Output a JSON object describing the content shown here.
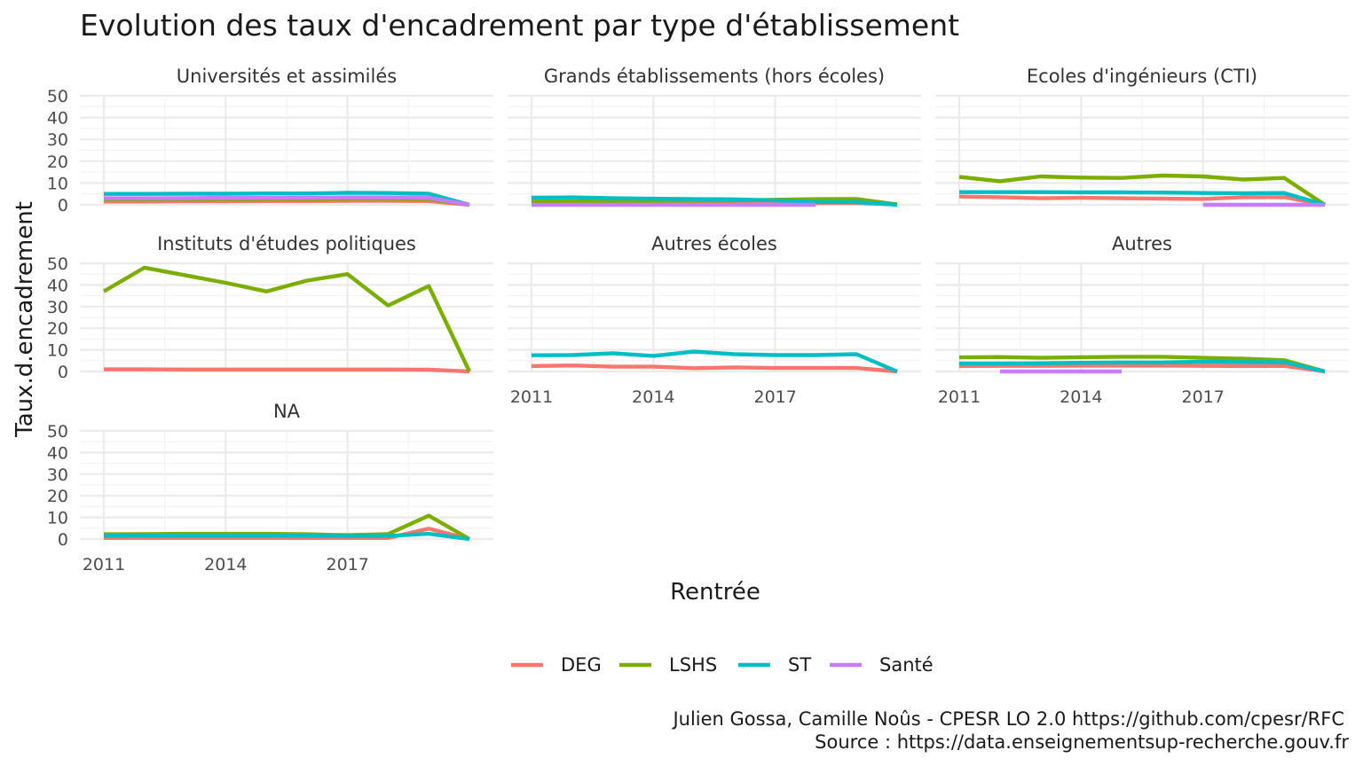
{
  "chart_data": {
    "type": "line",
    "title": "Evolution des taux d'encadrement par type d'établissement",
    "xlabel": "Rentrée",
    "ylabel": "Taux.d.encadrement",
    "x_ticks": [
      "2011",
      "2014",
      "2017"
    ],
    "y_ticks": [
      "0",
      "10",
      "20",
      "30",
      "40",
      "50"
    ],
    "xlim": [
      2011,
      2020
    ],
    "ylim": [
      0,
      50
    ],
    "grid": true,
    "legend_position": "bottom",
    "colors": {
      "DEG": "#F8766D",
      "LSHS": "#7CAE00",
      "ST": "#00BFC4",
      "Santé": "#C77CFF"
    },
    "legend": [
      "DEG",
      "LSHS",
      "ST",
      "Santé"
    ],
    "caption": [
      "Julien Gossa, Camille Noûs - CPESR LO 2.0 https://github.com/cpesr/RFC",
      "Source : https://data.enseignementsup-recherche.gouv.fr"
    ],
    "panels": [
      {
        "name": "Universités et assimilés",
        "series": [
          {
            "name": "DEG",
            "x": [
              2011,
              2012,
              2013,
              2014,
              2015,
              2016,
              2017,
              2018,
              2019,
              2020
            ],
            "y": [
              1.5,
              1.5,
              1.6,
              1.6,
              1.7,
              1.7,
              1.8,
              1.8,
              1.7,
              0
            ]
          },
          {
            "name": "LSHS",
            "x": [
              2011,
              2012,
              2013,
              2014,
              2015,
              2016,
              2017,
              2018,
              2019,
              2020
            ],
            "y": [
              2.5,
              2.5,
              2.6,
              2.6,
              2.7,
              2.7,
              2.8,
              2.8,
              2.7,
              0
            ]
          },
          {
            "name": "ST",
            "x": [
              2011,
              2012,
              2013,
              2014,
              2015,
              2016,
              2017,
              2018,
              2019,
              2020
            ],
            "y": [
              5.0,
              5.0,
              5.1,
              5.1,
              5.2,
              5.2,
              5.5,
              5.4,
              5.1,
              0
            ]
          },
          {
            "name": "Santé",
            "x": [
              2011,
              2012,
              2013,
              2014,
              2015,
              2016,
              2017,
              2018,
              2019,
              2020
            ],
            "y": [
              3.0,
              3.0,
              3.1,
              3.2,
              3.2,
              3.3,
              3.4,
              3.4,
              3.2,
              0
            ]
          }
        ]
      },
      {
        "name": "Grands établissements (hors écoles)",
        "series": [
          {
            "name": "DEG",
            "x": [
              2011,
              2012,
              2013,
              2014,
              2015,
              2016,
              2017,
              2018,
              2019,
              2020
            ],
            "y": [
              0.8,
              0.8,
              0.8,
              0.8,
              0.8,
              0.8,
              0.8,
              0.8,
              0.8,
              0.2
            ]
          },
          {
            "name": "LSHS",
            "x": [
              2011,
              2012,
              2013,
              2014,
              2015,
              2016,
              2017,
              2018,
              2019,
              2020
            ],
            "y": [
              1.5,
              1.6,
              1.7,
              1.8,
              1.9,
              2.0,
              2.3,
              2.6,
              2.7,
              0.2
            ]
          },
          {
            "name": "ST",
            "x": [
              2011,
              2012,
              2013,
              2014,
              2015,
              2016,
              2017,
              2018,
              2019,
              2020
            ],
            "y": [
              3.3,
              3.4,
              3.0,
              2.8,
              2.6,
              2.5,
              2.0,
              1.3,
              1.2,
              0
            ]
          },
          {
            "name": "Santé",
            "x": [
              2011,
              2012,
              2013,
              2014,
              2015,
              2016,
              2017,
              2018
            ],
            "y": [
              0,
              0,
              0,
              0,
              0,
              0,
              0,
              0
            ]
          }
        ]
      },
      {
        "name": "Ecoles d'ingénieurs (CTI)",
        "series": [
          {
            "name": "DEG",
            "x": [
              2011,
              2012,
              2013,
              2014,
              2015,
              2016,
              2017,
              2018,
              2019,
              2020
            ],
            "y": [
              3.8,
              3.5,
              3.0,
              3.2,
              3.0,
              2.8,
              2.7,
              3.5,
              3.5,
              0
            ]
          },
          {
            "name": "LSHS",
            "x": [
              2011,
              2012,
              2013,
              2014,
              2015,
              2016,
              2017,
              2018,
              2019,
              2020
            ],
            "y": [
              12.8,
              10.8,
              13.0,
              12.5,
              12.3,
              13.4,
              13.0,
              11.6,
              12.3,
              0
            ]
          },
          {
            "name": "ST",
            "x": [
              2011,
              2012,
              2013,
              2014,
              2015,
              2016,
              2017,
              2018,
              2019,
              2020
            ],
            "y": [
              5.8,
              5.8,
              5.8,
              5.7,
              5.7,
              5.6,
              5.4,
              5.3,
              5.4,
              0
            ]
          },
          {
            "name": "Santé",
            "x": [
              2017,
              2018,
              2019,
              2020
            ],
            "y": [
              0,
              0,
              0,
              0
            ]
          }
        ]
      },
      {
        "name": "Instituts d'études politiques",
        "series": [
          {
            "name": "DEG",
            "x": [
              2011,
              2012,
              2013,
              2014,
              2015,
              2016,
              2017,
              2018,
              2019,
              2020
            ],
            "y": [
              1.0,
              1.0,
              0.9,
              0.9,
              0.9,
              0.9,
              0.9,
              0.9,
              0.8,
              0
            ]
          },
          {
            "name": "LSHS",
            "x": [
              2011,
              2012,
              2013,
              2014,
              2015,
              2016,
              2017,
              2018,
              2019,
              2020
            ],
            "y": [
              37,
              48,
              44.5,
              41,
              37,
              42,
              45,
              30.5,
              39.5,
              0
            ]
          }
        ]
      },
      {
        "name": "Autres écoles",
        "series": [
          {
            "name": "DEG",
            "x": [
              2011,
              2012,
              2013,
              2014,
              2015,
              2016,
              2017,
              2018,
              2019,
              2020
            ],
            "y": [
              2.5,
              2.8,
              2.2,
              2.2,
              1.5,
              1.9,
              1.6,
              1.6,
              1.6,
              0
            ]
          },
          {
            "name": "ST",
            "x": [
              2011,
              2012,
              2013,
              2014,
              2015,
              2016,
              2017,
              2018,
              2019,
              2020
            ],
            "y": [
              7.5,
              7.6,
              8.4,
              7.2,
              9.2,
              8.0,
              7.6,
              7.6,
              8.0,
              0
            ]
          }
        ]
      },
      {
        "name": "Autres",
        "series": [
          {
            "name": "DEG",
            "x": [
              2011,
              2012,
              2013,
              2014,
              2015,
              2016,
              2017,
              2018,
              2019,
              2020
            ],
            "y": [
              2.5,
              2.6,
              2.6,
              2.7,
              2.7,
              2.7,
              2.6,
              2.5,
              2.6,
              0
            ]
          },
          {
            "name": "LSHS",
            "x": [
              2011,
              2012,
              2013,
              2014,
              2015,
              2016,
              2017,
              2018,
              2019,
              2020
            ],
            "y": [
              6.5,
              6.7,
              6.3,
              6.6,
              6.8,
              6.8,
              6.3,
              5.9,
              5.2,
              0
            ]
          },
          {
            "name": "ST",
            "x": [
              2011,
              2012,
              2013,
              2014,
              2015,
              2016,
              2017,
              2018,
              2019,
              2020
            ],
            "y": [
              3.7,
              3.7,
              3.8,
              4.0,
              4.2,
              4.2,
              4.5,
              4.3,
              4.3,
              0
            ]
          },
          {
            "name": "Santé",
            "x": [
              2012,
              2013,
              2014,
              2015
            ],
            "y": [
              0,
              0,
              0,
              0
            ]
          }
        ]
      },
      {
        "name": "NA",
        "series": [
          {
            "name": "DEG",
            "x": [
              2011,
              2012,
              2013,
              2014,
              2015,
              2016,
              2017,
              2018,
              2019,
              2020
            ],
            "y": [
              0.5,
              0.5,
              0.5,
              0.5,
              0.5,
              0.5,
              0.5,
              0.5,
              4.8,
              0
            ]
          },
          {
            "name": "LSHS",
            "x": [
              2011,
              2012,
              2013,
              2014,
              2015,
              2016,
              2017,
              2018,
              2019,
              2020
            ],
            "y": [
              2.2,
              2.3,
              2.4,
              2.4,
              2.4,
              2.2,
              1.8,
              2.3,
              10.8,
              0
            ]
          },
          {
            "name": "ST",
            "x": [
              2011,
              2012,
              2013,
              2014,
              2015,
              2016,
              2017,
              2018,
              2019,
              2020
            ],
            "y": [
              1.5,
              1.5,
              1.5,
              1.5,
              1.5,
              1.5,
              1.4,
              1.4,
              2.4,
              0
            ]
          }
        ]
      }
    ]
  }
}
